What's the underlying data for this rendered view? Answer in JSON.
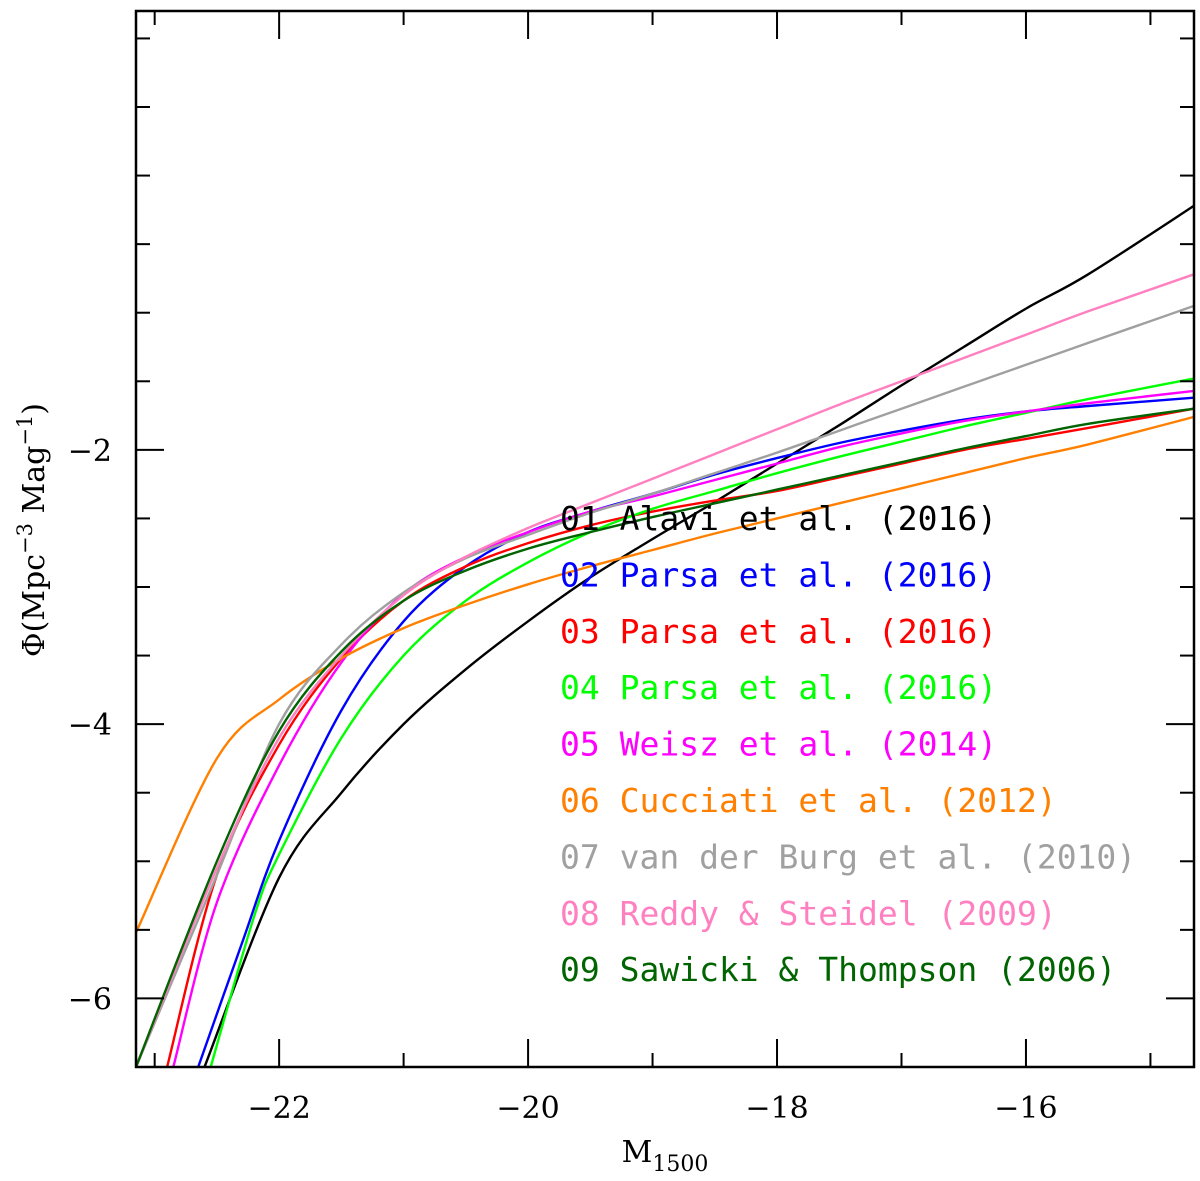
{
  "chart_data": {
    "type": "line",
    "title": "",
    "xlabel": {
      "main": "M",
      "sub": "1500"
    },
    "ylabel": {
      "main": "Φ(Mpc",
      "sup1": "−3",
      "mid": " Mag",
      "sup2": "−1",
      "end": ")"
    },
    "xlim": [
      -23.15,
      -14.65
    ],
    "ylim": [
      -6.5,
      1.2
    ],
    "x_ticks": [
      {
        "value": -22,
        "label": "−22"
      },
      {
        "value": -20,
        "label": "−20"
      },
      {
        "value": -18,
        "label": "−18"
      },
      {
        "value": -16,
        "label": "−16"
      }
    ],
    "y_ticks": [
      {
        "value": -2,
        "label": "−2"
      },
      {
        "value": -4,
        "label": "−4"
      },
      {
        "value": -6,
        "label": "−6"
      }
    ],
    "legend_position": "right",
    "series": [
      {
        "name": "01 Alavi et al. (2016)",
        "color": "#000000",
        "x": [
          -22.6,
          -22.0,
          -21.5,
          -21.0,
          -20.5,
          -20.0,
          -19.5,
          -19.0,
          -18.5,
          -18.0,
          -17.5,
          -17.0,
          -16.5,
          -16.0,
          -15.5,
          -14.65
        ],
        "y": [
          -6.5,
          -5.12,
          -4.5,
          -4.0,
          -3.6,
          -3.25,
          -2.93,
          -2.65,
          -2.38,
          -2.1,
          -1.82,
          -1.53,
          -1.25,
          -0.97,
          -0.72,
          -0.22
        ]
      },
      {
        "name": "02 Parsa et al. (2016)",
        "color": "#0000ff",
        "x": [
          -22.65,
          -22.3,
          -22.0,
          -21.5,
          -21.0,
          -20.5,
          -20.0,
          -19.5,
          -19.0,
          -18.5,
          -18.0,
          -17.5,
          -17.0,
          -16.5,
          -16.0,
          -15.5,
          -14.65
        ],
        "y": [
          -6.5,
          -5.6,
          -4.85,
          -3.9,
          -3.25,
          -2.85,
          -2.6,
          -2.45,
          -2.32,
          -2.18,
          -2.06,
          -1.95,
          -1.86,
          -1.78,
          -1.72,
          -1.68,
          -1.62
        ]
      },
      {
        "name": "03 Parsa et al. (2016)",
        "color": "#ff0000",
        "x": [
          -22.9,
          -22.5,
          -22.0,
          -21.5,
          -21.0,
          -20.5,
          -20.0,
          -19.5,
          -19.0,
          -18.5,
          -18.0,
          -17.5,
          -17.0,
          -16.5,
          -16.0,
          -15.5,
          -14.65
        ],
        "y": [
          -6.5,
          -5.1,
          -4.15,
          -3.52,
          -3.1,
          -2.85,
          -2.68,
          -2.55,
          -2.45,
          -2.37,
          -2.3,
          -2.2,
          -2.1,
          -2.0,
          -1.92,
          -1.84,
          -1.7
        ]
      },
      {
        "name": "04 Parsa et al. (2016)",
        "color": "#00ff00",
        "x": [
          -22.55,
          -22.2,
          -22.0,
          -21.5,
          -21.0,
          -20.5,
          -20.0,
          -19.5,
          -19.0,
          -18.5,
          -18.0,
          -17.5,
          -17.0,
          -16.5,
          -16.0,
          -15.5,
          -14.65
        ],
        "y": [
          -6.5,
          -5.4,
          -4.95,
          -4.1,
          -3.5,
          -3.1,
          -2.82,
          -2.6,
          -2.43,
          -2.3,
          -2.17,
          -2.05,
          -1.94,
          -1.83,
          -1.73,
          -1.63,
          -1.48
        ]
      },
      {
        "name": "05 Weisz et al. (2014)",
        "color": "#ff00ff",
        "x": [
          -22.85,
          -22.5,
          -22.0,
          -21.5,
          -21.0,
          -20.5,
          -20.0,
          -19.5,
          -19.0,
          -18.5,
          -18.0,
          -17.5,
          -17.0,
          -16.5,
          -16.0,
          -15.5,
          -14.65
        ],
        "y": [
          -6.5,
          -5.3,
          -4.3,
          -3.55,
          -3.05,
          -2.78,
          -2.6,
          -2.45,
          -2.34,
          -2.22,
          -2.1,
          -1.98,
          -1.88,
          -1.79,
          -1.72,
          -1.66,
          -1.57
        ]
      },
      {
        "name": "06 Cucciati et al. (2012)",
        "color": "#ff8000",
        "x": [
          -23.15,
          -22.5,
          -22.0,
          -21.5,
          -21.0,
          -20.5,
          -20.0,
          -19.5,
          -19.0,
          -18.5,
          -18.0,
          -17.5,
          -17.0,
          -16.5,
          -16.0,
          -15.5,
          -14.65
        ],
        "y": [
          -5.52,
          -4.25,
          -3.82,
          -3.52,
          -3.3,
          -3.13,
          -2.98,
          -2.85,
          -2.73,
          -2.61,
          -2.5,
          -2.39,
          -2.28,
          -2.17,
          -2.06,
          -1.96,
          -1.76
        ]
      },
      {
        "name": "07 van der Burg et al. (2010)",
        "color": "#a0a0a0",
        "x": [
          -23.15,
          -22.5,
          -22.0,
          -21.5,
          -21.0,
          -20.5,
          -20.0,
          -19.5,
          -19.0,
          -18.5,
          -18.0,
          -17.5,
          -17.0,
          -16.5,
          -16.0,
          -15.5,
          -14.65
        ],
        "y": [
          -6.5,
          -5.1,
          -4.0,
          -3.42,
          -3.04,
          -2.79,
          -2.62,
          -2.46,
          -2.32,
          -2.17,
          -2.02,
          -1.86,
          -1.7,
          -1.54,
          -1.38,
          -1.22,
          -0.95
        ]
      },
      {
        "name": "08 Reddy & Steidel (2009)",
        "color": "#ff80c0",
        "x": [
          -23.15,
          -22.5,
          -22.0,
          -21.5,
          -21.0,
          -20.5,
          -20.0,
          -19.5,
          -19.0,
          -18.5,
          -18.0,
          -17.5,
          -17.0,
          -16.5,
          -16.0,
          -15.5,
          -14.65
        ],
        "y": [
          -6.5,
          -5.05,
          -4.1,
          -3.5,
          -3.06,
          -2.78,
          -2.57,
          -2.39,
          -2.21,
          -2.03,
          -1.85,
          -1.67,
          -1.5,
          -1.33,
          -1.16,
          -0.99,
          -0.72
        ]
      },
      {
        "name": "09 Sawicki & Thompson (2006)",
        "color": "#006400",
        "x": [
          -23.15,
          -22.5,
          -22.0,
          -21.5,
          -21.0,
          -20.5,
          -20.0,
          -19.5,
          -19.0,
          -18.5,
          -18.0,
          -17.5,
          -17.0,
          -16.5,
          -16.0,
          -15.5,
          -14.65
        ],
        "y": [
          -6.5,
          -5.0,
          -4.05,
          -3.47,
          -3.1,
          -2.88,
          -2.72,
          -2.6,
          -2.49,
          -2.39,
          -2.29,
          -2.19,
          -2.09,
          -1.99,
          -1.9,
          -1.81,
          -1.7
        ]
      }
    ]
  }
}
